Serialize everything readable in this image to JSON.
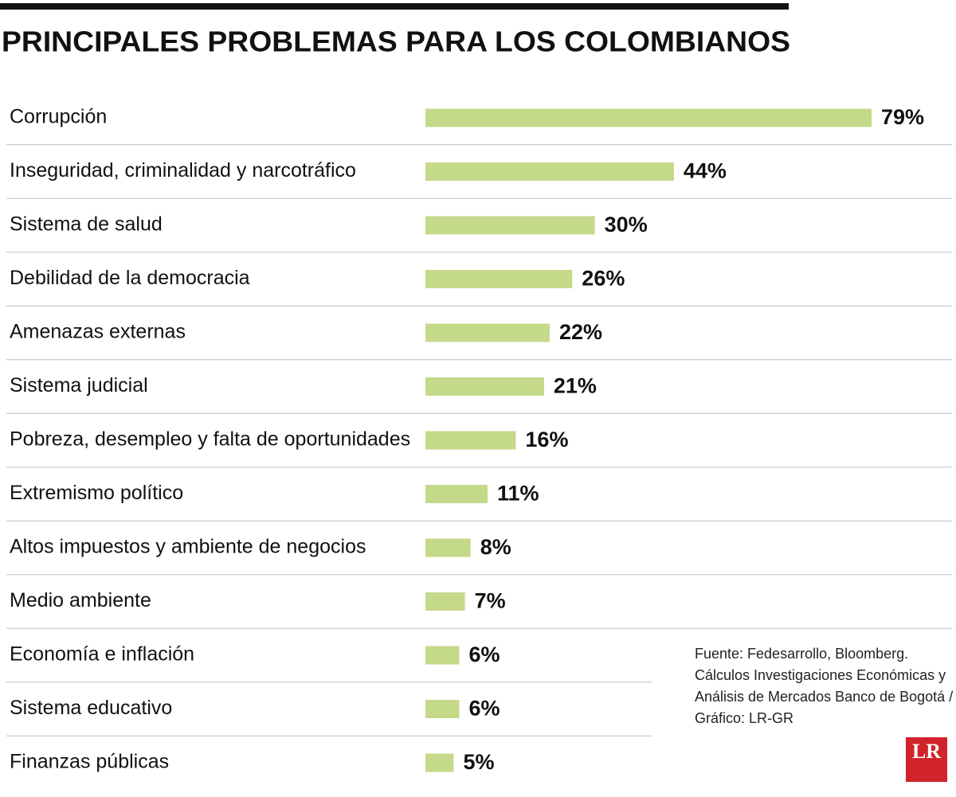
{
  "chart_data": {
    "type": "bar",
    "orientation": "horizontal",
    "title": "PRINCIPALES PROBLEMAS PARA LOS COLOMBIANOS",
    "categories": [
      "Corrupción",
      "Inseguridad, criminalidad y narcotráfico",
      "Sistema de salud",
      "Debilidad de la democracia",
      "Amenazas externas",
      "Sistema judicial",
      "Pobreza, desempleo y falta de oportunidades",
      "Extremismo político",
      "Altos impuestos y ambiente de negocios",
      "Medio ambiente",
      "Economía e inflación",
      "Sistema educativo",
      "Finanzas públicas"
    ],
    "values": [
      79,
      44,
      30,
      26,
      22,
      21,
      16,
      11,
      8,
      7,
      6,
      6,
      5
    ],
    "value_labels": [
      "79%",
      "44%",
      "30%",
      "26%",
      "22%",
      "21%",
      "16%",
      "11%",
      "8%",
      "7%",
      "6%",
      "6%",
      "5%"
    ],
    "color": "#c5d98a",
    "source": [
      "Fuente: Fedesarrollo, Bloomberg.",
      "Cálculos Investigaciones Económicas y",
      "Análisis de Mercados Banco de Bogotá /",
      "Gráfico: LR-GR"
    ],
    "logo": "LR"
  }
}
